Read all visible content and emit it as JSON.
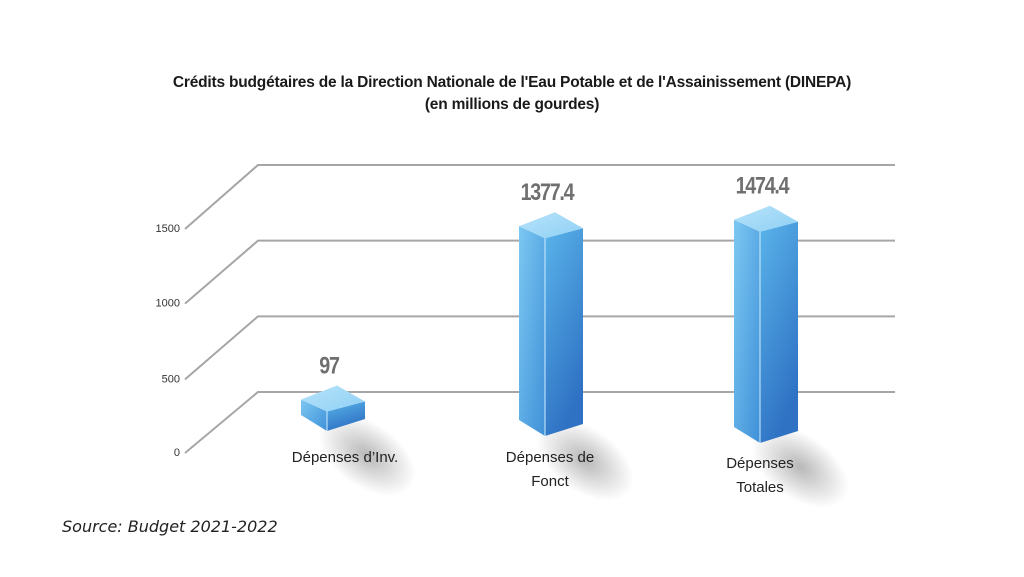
{
  "chart_data": {
    "type": "bar",
    "style": "3d-column",
    "title": "Crédits budgétaires de la Direction Nationale de l'Eau Potable et de l'Assainissement (DINEPA)",
    "subtitle": "(en millions de gourdes)",
    "categories": [
      [
        "Dépenses d’Inv."
      ],
      [
        "Dépenses de",
        "Fonct"
      ],
      [
        "Dépenses",
        "Totales"
      ]
    ],
    "values": [
      97,
      1377.4,
      1474.4
    ],
    "value_labels": [
      "97",
      "1377.4",
      "1474.4"
    ],
    "yticks": [
      0,
      500,
      1000,
      1500
    ],
    "ytick_labels": [
      "0",
      "500",
      "1000",
      "1500"
    ],
    "ylim": [
      0,
      1500
    ],
    "grid": true,
    "xlabel": "",
    "ylabel": "",
    "bar_color": "#3f9be0",
    "source": "Source: Budget 2021-2022"
  }
}
